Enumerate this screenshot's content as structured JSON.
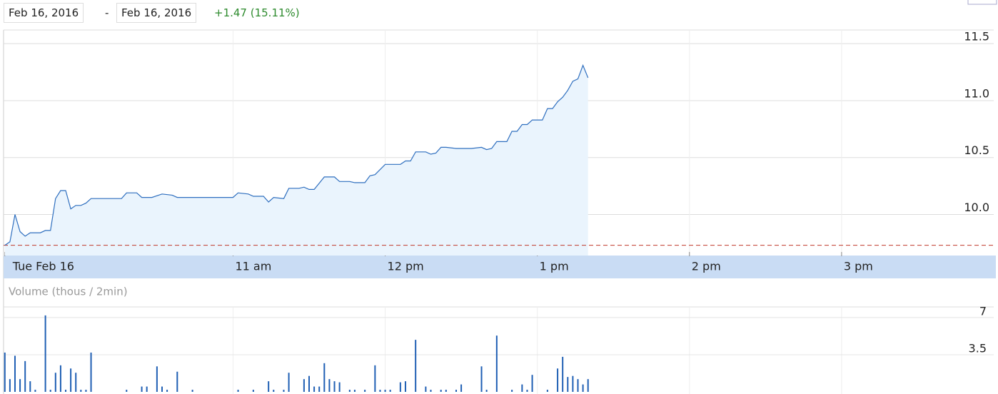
{
  "header": {
    "start_date": "Feb 16, 2016",
    "separator": "-",
    "end_date": "Feb 16, 2016",
    "change": "+1.47 (15.11%)"
  },
  "chart_data": [
    {
      "type": "area",
      "x": [
        570,
        572,
        574,
        576,
        578,
        580,
        584,
        586,
        588,
        590,
        592,
        594,
        596,
        598,
        600,
        602,
        604,
        616,
        618,
        622,
        624,
        628,
        632,
        636,
        638,
        660,
        662,
        666,
        668,
        672,
        674,
        676,
        680,
        682,
        686,
        688,
        690,
        692,
        696,
        700,
        702,
        706,
        708,
        712,
        714,
        716,
        720,
        726,
        728,
        730,
        732,
        736,
        738,
        740,
        742,
        744,
        748,
        754,
        758,
        760,
        762,
        764,
        768,
        770,
        772,
        774,
        776,
        778,
        782,
        784,
        786,
        788,
        790,
        792,
        794,
        796,
        798,
        800
      ],
      "values": [
        9.73,
        9.76,
        10.0,
        9.85,
        9.81,
        9.84,
        9.84,
        9.86,
        9.86,
        10.14,
        10.21,
        10.21,
        10.05,
        10.08,
        10.08,
        10.1,
        10.14,
        10.14,
        10.19,
        10.19,
        10.15,
        10.15,
        10.18,
        10.17,
        10.15,
        10.15,
        10.19,
        10.18,
        10.16,
        10.16,
        10.11,
        10.15,
        10.14,
        10.23,
        10.23,
        10.24,
        10.22,
        10.22,
        10.33,
        10.33,
        10.29,
        10.29,
        10.28,
        10.28,
        10.34,
        10.35,
        10.44,
        10.44,
        10.47,
        10.47,
        10.55,
        10.55,
        10.53,
        10.54,
        10.59,
        10.59,
        10.58,
        10.58,
        10.59,
        10.57,
        10.58,
        10.64,
        10.64,
        10.73,
        10.73,
        10.79,
        10.79,
        10.83,
        10.83,
        10.93,
        10.93,
        10.99,
        11.03,
        11.09,
        11.17,
        11.19,
        11.31,
        11.2
      ],
      "color": "#2f6fbf",
      "fill": "#eaf4fd",
      "reference_line": {
        "value": 9.73,
        "color": "#c0392b"
      },
      "xlim": [
        569.5,
        960
      ],
      "xticks": [
        {
          "value": 570,
          "label": "Tue Feb 16"
        },
        {
          "value": 660,
          "label": "11 am"
        },
        {
          "value": 720,
          "label": "12 pm"
        },
        {
          "value": 780,
          "label": "1 pm"
        },
        {
          "value": 840,
          "label": "2 pm"
        },
        {
          "value": 900,
          "label": "3 pm"
        }
      ],
      "ylim": [
        9.64,
        11.62
      ],
      "yticks": [
        {
          "value": 10,
          "label": "10.0"
        },
        10.5,
        {
          "value": 11,
          "label": "11.0"
        },
        11.5
      ],
      "grid": true
    },
    {
      "type": "bar",
      "title": "Volume (thous / 2min)",
      "x": [
        570,
        572,
        574,
        576,
        578,
        580,
        582,
        586,
        588,
        590,
        592,
        594,
        596,
        598,
        600,
        602,
        604,
        618,
        624,
        626,
        630,
        632,
        634,
        638,
        644,
        662,
        668,
        674,
        676,
        680,
        682,
        688,
        690,
        692,
        694,
        696,
        698,
        700,
        702,
        706,
        708,
        712,
        716,
        718,
        720,
        722,
        726,
        728,
        732,
        736,
        738,
        742,
        744,
        748,
        750,
        758,
        760,
        764,
        770,
        774,
        776,
        778,
        784,
        788,
        790,
        792,
        794,
        796,
        798,
        800
      ],
      "values": [
        3.7,
        1.2,
        3.4,
        1.2,
        2.9,
        1.0,
        0.2,
        7.2,
        0.2,
        1.8,
        2.5,
        0.2,
        2.2,
        1.8,
        0.2,
        0.2,
        3.7,
        0.2,
        0.5,
        0.5,
        2.4,
        0.5,
        0.2,
        1.9,
        0.2,
        0.2,
        0.2,
        1.0,
        0.2,
        0.2,
        1.8,
        1.2,
        1.5,
        0.5,
        0.5,
        2.7,
        1.2,
        1.0,
        0.9,
        0.2,
        0.2,
        0.2,
        2.5,
        0.2,
        0.2,
        0.2,
        0.9,
        1.0,
        4.9,
        0.5,
        0.2,
        0.2,
        0.2,
        0.2,
        0.7,
        2.4,
        0.2,
        5.3,
        0.2,
        0.7,
        0.2,
        1.6,
        0.2,
        2.2,
        3.3,
        1.4,
        1.5,
        1.2,
        0.7,
        1.2
      ],
      "color": "#1f5fb4",
      "xlim": [
        569.5,
        960
      ],
      "ylim": [
        0,
        8
      ],
      "yticks": [
        3.5,
        7
      ],
      "grid": true
    }
  ]
}
